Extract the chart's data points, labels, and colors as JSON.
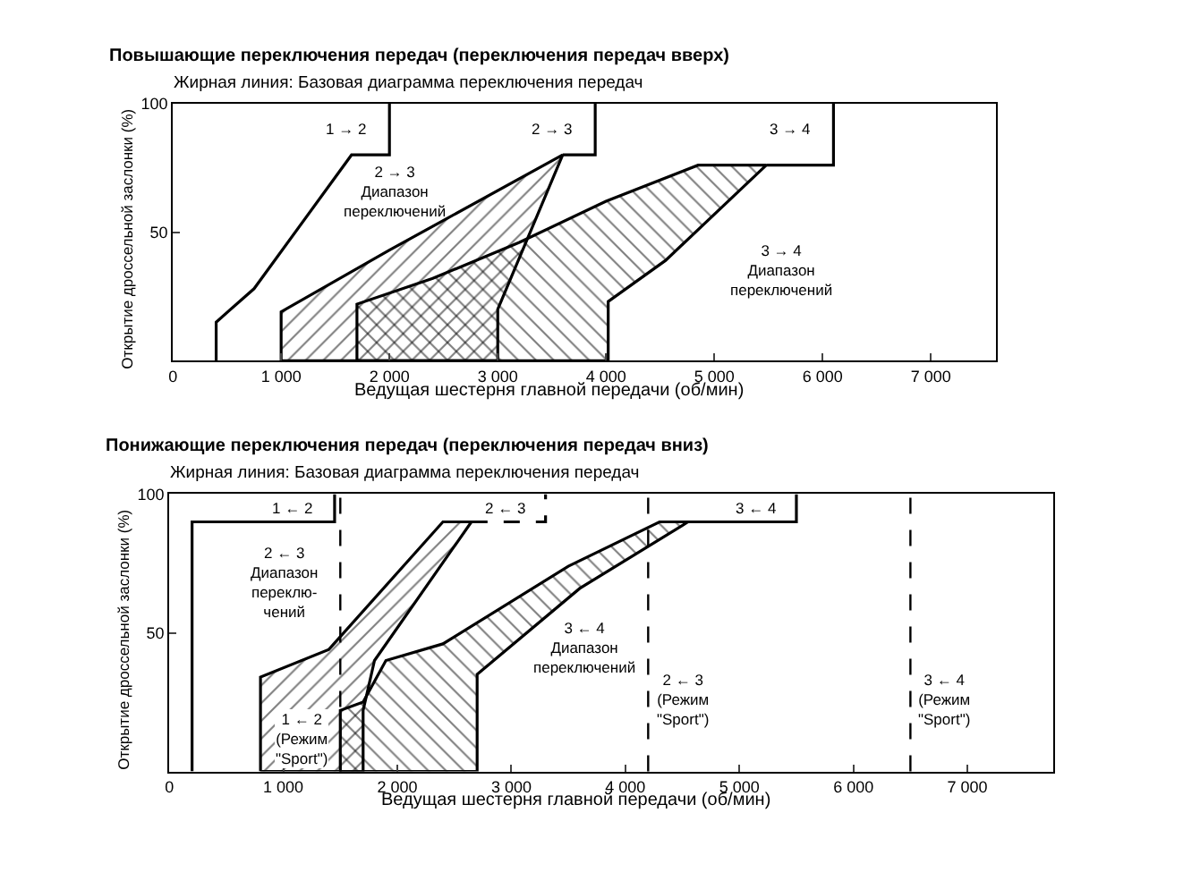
{
  "chart_data": [
    {
      "type": "line",
      "title": "Повышающие переключения передач (переключения передач вверх)",
      "subtitle": "Жирная линия: Базовая диаграмма переключения передач",
      "xlabel": "Ведущая шестерня главной передачи (об/мин)",
      "ylabel": "Открытие дроссельной заслонки (%)",
      "xlim": [
        0,
        7600
      ],
      "ylim": [
        0,
        100
      ],
      "xticks": [
        0,
        {
          "value": 1000,
          "label": "1 000"
        },
        {
          "value": 2000,
          "label": "2 000"
        },
        {
          "value": 3000,
          "label": "3 000"
        },
        {
          "value": 4000,
          "label": "4 000"
        },
        {
          "value": 5000,
          "label": "5 000"
        },
        {
          "value": 6000,
          "label": "6 000"
        },
        {
          "value": 7000,
          "label": "7 000"
        }
      ],
      "yticks": [
        50,
        100
      ],
      "grid": false,
      "marker": "none",
      "series": [
        {
          "type": "line",
          "color": "#000000",
          "x": [
            400,
            400,
            750,
            1650,
            2000,
            2000
          ],
          "values": [
            0,
            15,
            28,
            80,
            80,
            100
          ]
        },
        {
          "type": "area",
          "color": "#000000",
          "x": [
            1000,
            1000,
            2000,
            3600,
            3350,
            3150,
            3000,
            3000,
            1000
          ],
          "values": [
            0,
            19,
            43,
            80,
            55,
            35,
            20,
            0,
            0
          ]
        },
        {
          "type": "line",
          "color": "#000000",
          "x": [
            3600,
            3900,
            3900
          ],
          "values": [
            80,
            80,
            100
          ]
        },
        {
          "type": "area",
          "color": "#000000",
          "x": [
            1700,
            1700,
            2400,
            3200,
            4000,
            4850,
            5480,
            4550,
            4020,
            4020,
            1700
          ],
          "values": [
            0,
            22,
            32,
            46,
            62,
            76,
            76,
            39,
            23,
            0,
            0
          ]
        },
        {
          "type": "line",
          "color": "#000000",
          "x": [
            5480,
            6100,
            6100
          ],
          "values": [
            76,
            76,
            100
          ]
        }
      ],
      "annotations": [
        "1 → 2",
        "2 → 3",
        "3 → 4",
        "2 → 3\nДиапазон\nпереключений",
        "3 → 4\nДиапазон\nпереключений"
      ]
    },
    {
      "type": "line",
      "title": "Понижающие переключения передач (переключения передач вниз)",
      "subtitle": "Жирная линия: Базовая диаграмма переключения передач",
      "xlabel": "Ведущая шестерня главной передачи (об/мин)",
      "ylabel": "Открытие дроссельной заслонки (%)",
      "xlim": [
        0,
        7750
      ],
      "ylim": [
        0,
        100
      ],
      "xticks": [
        0,
        {
          "value": 1000,
          "label": "1 000"
        },
        {
          "value": 2000,
          "label": "2 000"
        },
        {
          "value": 3000,
          "label": "3 000"
        },
        {
          "value": 4000,
          "label": "4 000"
        },
        {
          "value": 5000,
          "label": "5 000"
        },
        {
          "value": 6000,
          "label": "6 000"
        },
        {
          "value": 7000,
          "label": "7 000"
        }
      ],
      "yticks": [
        50,
        100
      ],
      "grid": false,
      "marker": "none",
      "series": [
        {
          "type": "line",
          "color": "#000000",
          "x": [
            200,
            200,
            1450,
            1450
          ],
          "values": [
            0,
            90,
            90,
            100
          ]
        },
        {
          "type": "area",
          "color": "#000000",
          "x": [
            800,
            800,
            1400,
            2400,
            2650,
            1800,
            1700,
            1700,
            800
          ],
          "values": [
            0,
            34,
            44,
            90,
            90,
            40,
            22,
            0,
            0
          ]
        },
        {
          "type": "line",
          "color": "#000000",
          "line_style": "dashed",
          "x": [
            2650,
            3300,
            3300
          ],
          "values": [
            90,
            90,
            100
          ]
        },
        {
          "type": "area",
          "color": "#000000",
          "x": [
            1500,
            1500,
            1700,
            1900,
            2400,
            3500,
            4300,
            4550,
            3600,
            2700,
            2700,
            1500
          ],
          "values": [
            0,
            22,
            25,
            40,
            46,
            74,
            90,
            90,
            66,
            35,
            0,
            0
          ]
        },
        {
          "type": "line",
          "color": "#000000",
          "x": [
            4550,
            5500,
            5500
          ],
          "values": [
            90,
            90,
            100
          ]
        }
      ],
      "ref_lines": [
        {
          "axis": "x",
          "value": 1500,
          "line_style": "dashed"
        },
        {
          "axis": "x",
          "value": 4200,
          "line_style": "dashed"
        },
        {
          "axis": "x",
          "value": 6500,
          "line_style": "dashed"
        }
      ],
      "annotations": [
        "1 ← 2",
        "2 ← 3",
        "3 ← 4",
        "2 ← 3\nДиапазон\nпереклю-\nчений",
        "3 ← 4\nДиапазон\nпереключений",
        "1 ← 2\n(Режим\n\"Sport\")",
        "2 ← 3\n(Режим\n\"Sport\")",
        "3 ← 4\n(Режим\n\"Sport\")"
      ]
    }
  ]
}
